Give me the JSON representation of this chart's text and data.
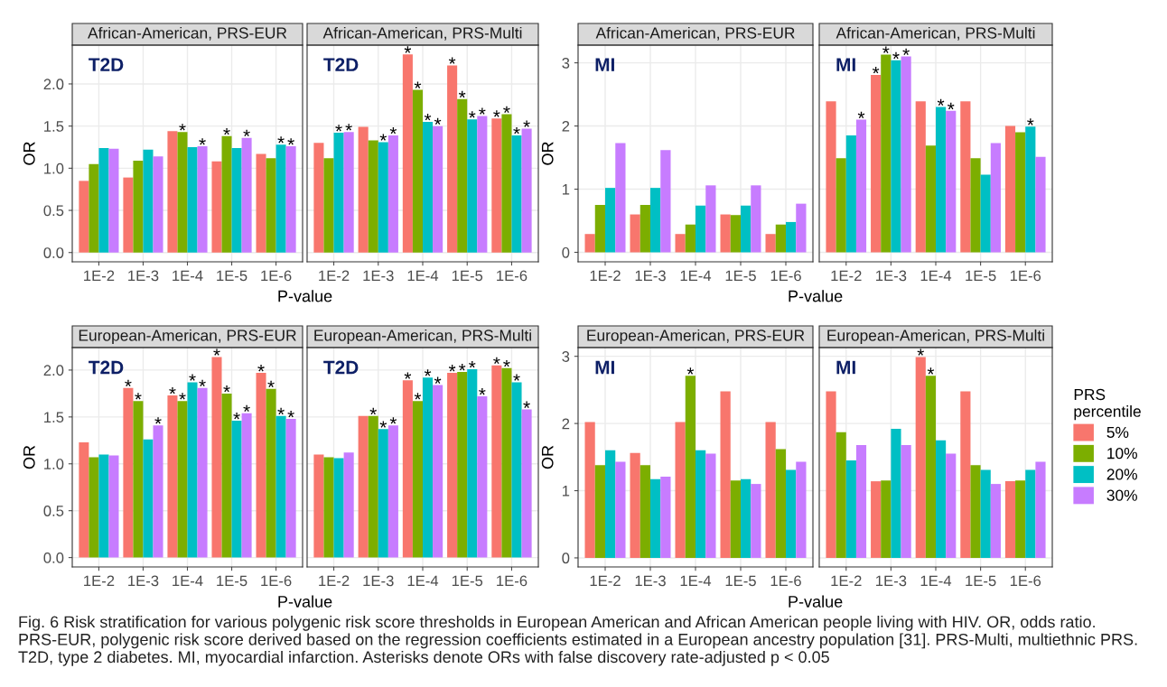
{
  "chart_data": [
    {
      "type": "bar",
      "title": "African-American, PRS-EUR",
      "xlabel": "P-value",
      "ylabel": "OR",
      "annotations": [
        "T2D",
        "Fig. 6 Risk stratification for various polygenic risk score thresholds in European American and African American people living with HIV. OR, odds ratio. PRS-EUR, polygenic risk score derived based on the regression coefficients estimated in a European ancestry population [31]. PRS-Multi, multiethnic PRS. T2D, type 2 diabetes. MI, myocardial infarction. Asterisks denote ORs with false discovery rate-adjusted p < 0.05"
      ],
      "categories": [
        "1E-2",
        "1E-3",
        "1E-4",
        "1E-5",
        "1E-6"
      ],
      "ylim": [
        -0.11,
        2.46
      ],
      "yticks": [
        {
          "value": 0,
          "label": "0.0"
        },
        0.5,
        {
          "value": 1,
          "label": "1.0"
        },
        1.5,
        {
          "value": 2,
          "label": "2.0"
        }
      ],
      "grid": true,
      "series": [
        {
          "color": "#f8766d",
          "values": [
            0.85,
            0.89,
            1.44,
            1.08,
            1.17
          ],
          "value_labels": [
            null,
            null,
            null,
            null,
            null
          ]
        },
        {
          "color": "#7cae00",
          "values": [
            1.05,
            1.09,
            1.43,
            1.38,
            1.12
          ],
          "value_labels": [
            null,
            null,
            "*",
            "*",
            null
          ]
        },
        {
          "color": "#00bfc4",
          "values": [
            1.24,
            1.22,
            1.25,
            1.24,
            1.28
          ],
          "value_labels": [
            null,
            null,
            null,
            null,
            "*"
          ]
        },
        {
          "color": "#c77cff",
          "values": [
            1.23,
            1.14,
            1.26,
            1.36,
            1.26
          ],
          "value_labels": [
            null,
            null,
            "*",
            "*",
            "*"
          ]
        }
      ]
    },
    {
      "type": "bar",
      "title": "African-American, PRS-Multi",
      "annotations": [
        "T2D"
      ],
      "tick_labels": "x",
      "categories": [
        "1E-2",
        "1E-3",
        "1E-4",
        "1E-5",
        "1E-6"
      ],
      "ylim": [
        -0.11,
        2.46
      ],
      "grid": true,
      "series": [
        {
          "color": "#f8766d",
          "values": [
            1.3,
            1.49,
            2.35,
            2.22,
            1.59
          ],
          "value_labels": [
            null,
            null,
            "*",
            "*",
            "*"
          ]
        },
        {
          "color": "#7cae00",
          "values": [
            1.12,
            1.33,
            1.93,
            1.82,
            1.64
          ],
          "value_labels": [
            null,
            null,
            "*",
            "*",
            "*"
          ]
        },
        {
          "color": "#00bfc4",
          "values": [
            1.42,
            1.31,
            1.55,
            1.58,
            1.39
          ],
          "value_labels": [
            "*",
            "*",
            "*",
            "*",
            "*"
          ]
        },
        {
          "color": "#c77cff",
          "values": [
            1.43,
            1.39,
            1.5,
            1.62,
            1.47
          ],
          "value_labels": [
            "*",
            "*",
            "*",
            "*",
            "*"
          ]
        }
      ]
    },
    {
      "type": "bar",
      "title": "African-American, PRS-EUR",
      "xlabel": "P-value",
      "ylabel": "OR",
      "annotations": [
        "MI"
      ],
      "categories": [
        "1E-2",
        "1E-3",
        "1E-4",
        "1E-5",
        "1E-6"
      ],
      "ylim": [
        -0.15,
        3.28
      ],
      "yticks": [
        0,
        1,
        2,
        3
      ],
      "grid": true,
      "series": [
        {
          "color": "#f8766d",
          "values": [
            0.29,
            0.6,
            0.29,
            0.6,
            0.29
          ],
          "value_labels": [
            null,
            null,
            null,
            null,
            null
          ]
        },
        {
          "color": "#7cae00",
          "values": [
            0.75,
            0.75,
            0.44,
            0.59,
            0.44
          ],
          "value_labels": [
            null,
            null,
            null,
            null,
            null
          ]
        },
        {
          "color": "#00bfc4",
          "values": [
            1.02,
            1.02,
            0.74,
            0.74,
            0.48
          ],
          "value_labels": [
            null,
            null,
            null,
            null,
            null
          ]
        },
        {
          "color": "#c77cff",
          "values": [
            1.73,
            1.62,
            1.06,
            1.06,
            0.77
          ],
          "value_labels": [
            null,
            null,
            null,
            null,
            null
          ]
        }
      ]
    },
    {
      "type": "bar",
      "title": "African-American, PRS-Multi",
      "annotations": [
        "MI"
      ],
      "tick_labels": "x",
      "categories": [
        "1E-2",
        "1E-3",
        "1E-4",
        "1E-5",
        "1E-6"
      ],
      "ylim": [
        -0.15,
        3.28
      ],
      "grid": true,
      "series": [
        {
          "color": "#f8766d",
          "values": [
            2.39,
            2.81,
            2.39,
            2.39,
            2.0
          ],
          "value_labels": [
            null,
            "*",
            null,
            null,
            null
          ]
        },
        {
          "color": "#7cae00",
          "values": [
            1.49,
            3.13,
            1.69,
            1.49,
            1.9
          ],
          "value_labels": [
            null,
            "*",
            null,
            null,
            null
          ]
        },
        {
          "color": "#00bfc4",
          "values": [
            1.85,
            3.04,
            2.3,
            1.23,
            1.99
          ],
          "value_labels": [
            null,
            "*",
            "*",
            null,
            "*"
          ]
        },
        {
          "color": "#c77cff",
          "values": [
            2.1,
            3.1,
            2.24,
            1.73,
            1.51
          ],
          "value_labels": [
            "*",
            "*",
            "*",
            null,
            null
          ]
        }
      ]
    },
    {
      "type": "bar",
      "title": "European-American, PRS-EUR",
      "xlabel": "P-value",
      "ylabel": "OR",
      "annotations": [
        "T2D"
      ],
      "categories": [
        "1E-2",
        "1E-3",
        "1E-4",
        "1E-5",
        "1E-6"
      ],
      "ylim": [
        -0.1,
        2.24
      ],
      "yticks": [
        {
          "value": 0,
          "label": "0.0"
        },
        0.5,
        {
          "value": 1,
          "label": "1.0"
        },
        1.5,
        {
          "value": 2,
          "label": "2.0"
        }
      ],
      "grid": true,
      "series": [
        {
          "color": "#f8766d",
          "values": [
            1.23,
            1.81,
            1.73,
            2.14,
            1.97
          ],
          "value_labels": [
            null,
            "*",
            "*",
            "*",
            "*"
          ]
        },
        {
          "color": "#7cae00",
          "values": [
            1.07,
            1.67,
            1.67,
            1.75,
            1.8
          ],
          "value_labels": [
            null,
            "*",
            "*",
            "*",
            "*"
          ]
        },
        {
          "color": "#00bfc4",
          "values": [
            1.1,
            1.26,
            1.87,
            1.46,
            1.51
          ],
          "value_labels": [
            null,
            null,
            "*",
            "*",
            "*"
          ]
        },
        {
          "color": "#c77cff",
          "values": [
            1.09,
            1.41,
            1.81,
            1.54,
            1.48
          ],
          "value_labels": [
            null,
            "*",
            "*",
            "*",
            "*"
          ]
        }
      ]
    },
    {
      "type": "bar",
      "title": "European-American, PRS-Multi",
      "annotations": [
        "T2D"
      ],
      "tick_labels": "x",
      "categories": [
        "1E-2",
        "1E-3",
        "1E-4",
        "1E-5",
        "1E-6"
      ],
      "ylim": [
        -0.1,
        2.24
      ],
      "grid": true,
      "series": [
        {
          "color": "#f8766d",
          "values": [
            1.1,
            1.51,
            1.89,
            1.97,
            2.05
          ],
          "value_labels": [
            null,
            null,
            "*",
            "*",
            "*"
          ]
        },
        {
          "color": "#7cae00",
          "values": [
            1.07,
            1.51,
            1.67,
            1.98,
            2.02
          ],
          "value_labels": [
            null,
            "*",
            "*",
            "*",
            "*"
          ]
        },
        {
          "color": "#00bfc4",
          "values": [
            1.06,
            1.37,
            1.92,
            2.01,
            1.87
          ],
          "value_labels": [
            null,
            "*",
            "*",
            "*",
            "*"
          ]
        },
        {
          "color": "#c77cff",
          "values": [
            1.12,
            1.41,
            1.84,
            1.72,
            1.58
          ],
          "value_labels": [
            null,
            "*",
            "*",
            "*",
            "*"
          ]
        }
      ]
    },
    {
      "type": "bar",
      "title": "European-American, PRS-EUR",
      "xlabel": "P-value",
      "ylabel": "OR",
      "annotations": [
        "MI"
      ],
      "categories": [
        "1E-2",
        "1E-3",
        "1E-4",
        "1E-5",
        "1E-6"
      ],
      "ylim": [
        -0.135,
        3.13
      ],
      "yticks": [
        0,
        1,
        2,
        3
      ],
      "grid": true,
      "series": [
        {
          "color": "#f8766d",
          "values": [
            2.02,
            1.56,
            2.02,
            2.48,
            2.02
          ],
          "value_labels": [
            null,
            null,
            null,
            null,
            null
          ]
        },
        {
          "color": "#7cae00",
          "values": [
            1.38,
            1.38,
            2.71,
            1.15,
            1.62
          ],
          "value_labels": [
            null,
            null,
            "*",
            null,
            null
          ]
        },
        {
          "color": "#00bfc4",
          "values": [
            1.6,
            1.17,
            1.6,
            1.17,
            1.31
          ],
          "value_labels": [
            null,
            null,
            null,
            null,
            null
          ]
        },
        {
          "color": "#c77cff",
          "values": [
            1.43,
            1.21,
            1.55,
            1.1,
            1.43
          ],
          "value_labels": [
            null,
            null,
            null,
            null,
            null
          ]
        }
      ]
    },
    {
      "type": "bar",
      "title": "European-American, PRS-Multi",
      "annotations": [
        "MI"
      ],
      "tick_labels": "x",
      "legend": "right",
      "legend_title": "PRS\npercentile",
      "categories": [
        "1E-2",
        "1E-3",
        "1E-4",
        "1E-5",
        "1E-6"
      ],
      "ylim": [
        -0.135,
        3.13
      ],
      "grid": true,
      "series": [
        {
          "name": "5%",
          "color": "#f8766d",
          "values": [
            2.48,
            1.14,
            2.99,
            2.48,
            1.14
          ],
          "value_labels": [
            null,
            null,
            "*",
            null,
            null
          ]
        },
        {
          "name": "10%",
          "color": "#7cae00",
          "values": [
            1.87,
            1.15,
            2.71,
            1.38,
            1.15
          ],
          "value_labels": [
            null,
            null,
            "*",
            null,
            null
          ]
        },
        {
          "name": "20%",
          "color": "#00bfc4",
          "values": [
            1.45,
            1.92,
            1.75,
            1.31,
            1.31
          ],
          "value_labels": [
            null,
            null,
            null,
            null,
            null
          ]
        },
        {
          "name": "30%",
          "color": "#c77cff",
          "values": [
            1.68,
            1.68,
            1.55,
            1.1,
            1.43
          ],
          "value_labels": [
            null,
            null,
            null,
            null,
            null
          ]
        }
      ]
    }
  ]
}
